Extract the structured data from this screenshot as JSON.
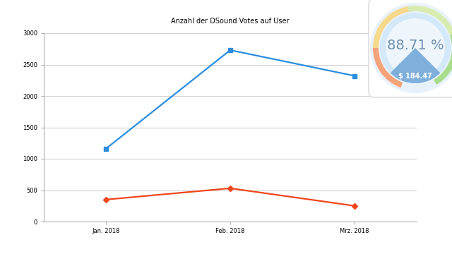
{
  "chart_data": {
    "type": "line",
    "title": "Anzahl der DSound Votes auf User",
    "categories": [
      "Jan. 2018",
      "Feb. 2018",
      "Mrz. 2018"
    ],
    "series": [
      {
        "color": "#2a8de0",
        "marker": "square",
        "values": [
          1160,
          2730,
          2320
        ]
      },
      {
        "color": "#f0461b",
        "marker": "diamond",
        "values": [
          350,
          530,
          250
        ]
      }
    ],
    "ylim": [
      0,
      3000
    ],
    "yticks": [
      0,
      500,
      1000,
      1500,
      2000,
      2500,
      3000
    ],
    "grid": true,
    "annotations": [
      "88.71 %",
      "$ 184.47"
    ]
  }
}
